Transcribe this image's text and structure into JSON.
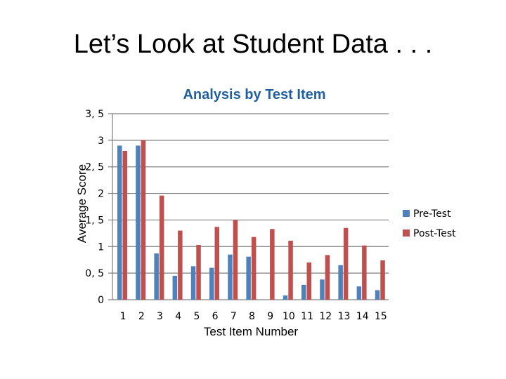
{
  "slide": {
    "title": "Let’s Look at Student Data . . ."
  },
  "colors": {
    "pre": "#4F81BD",
    "post": "#C0504D",
    "grid": "#7F7F7F",
    "title": "#1F5F9F"
  },
  "chart_data": {
    "type": "bar",
    "title": "Analysis by Test Item",
    "xlabel": "Test Item Number",
    "ylabel": "Average Score",
    "categories": [
      "1",
      "2",
      "3",
      "4",
      "5",
      "6",
      "7",
      "8",
      "9",
      "10",
      "11",
      "12",
      "13",
      "14",
      "15"
    ],
    "series": [
      {
        "name": "Pre-Test",
        "values": [
          2.9,
          2.9,
          0.87,
          0.45,
          0.63,
          0.6,
          0.85,
          0.81,
          0.0,
          0.08,
          0.28,
          0.38,
          0.65,
          0.25,
          0.18
        ]
      },
      {
        "name": "Post-Test",
        "values": [
          2.8,
          3.0,
          1.96,
          1.3,
          1.03,
          1.37,
          1.5,
          1.18,
          1.33,
          1.11,
          0.7,
          0.84,
          1.35,
          1.02,
          0.74
        ]
      }
    ],
    "ylim": [
      0,
      3.5
    ],
    "yticks": [
      "0",
      "0, 5",
      "1",
      "1, 5",
      "2",
      "2, 5",
      "3",
      "3, 5"
    ],
    "grid": true,
    "legend_position": "right"
  }
}
